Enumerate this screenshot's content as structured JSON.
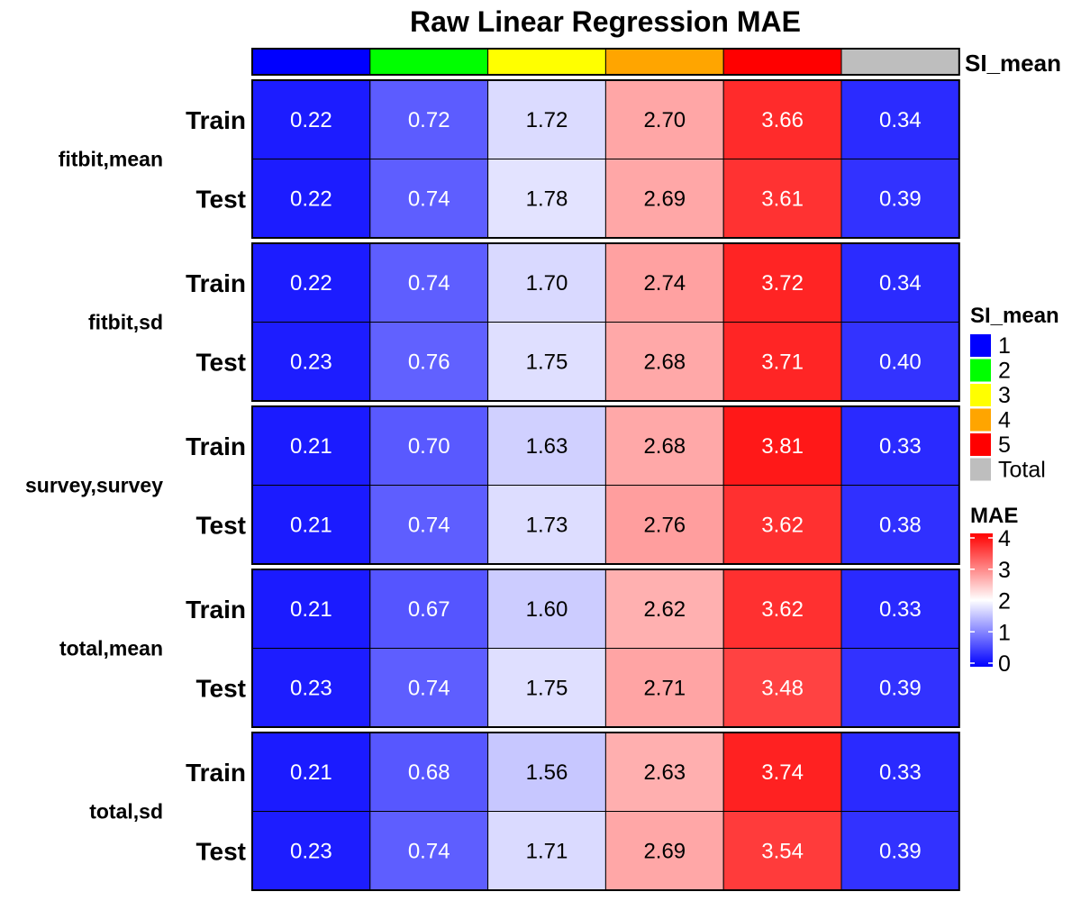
{
  "chart_data": {
    "type": "heatmap",
    "title": "Raw Linear Regression MAE",
    "annotation": {
      "name": "SI_mean",
      "columns": [
        "1",
        "2",
        "3",
        "4",
        "5",
        "Total"
      ],
      "colors": [
        "#0000ff",
        "#00ff00",
        "#ffff00",
        "#ffa500",
        "#ff0000",
        "#bebebe"
      ]
    },
    "groups": [
      {
        "label": "fitbit,mean",
        "rows": [
          {
            "label": "Train",
            "values": [
              0.22,
              0.72,
              1.72,
              2.7,
              3.66,
              0.34
            ]
          },
          {
            "label": "Test",
            "values": [
              0.22,
              0.74,
              1.78,
              2.69,
              3.61,
              0.39
            ]
          }
        ]
      },
      {
        "label": "fitbit,sd",
        "rows": [
          {
            "label": "Train",
            "values": [
              0.22,
              0.74,
              1.7,
              2.74,
              3.72,
              0.34
            ]
          },
          {
            "label": "Test",
            "values": [
              0.23,
              0.76,
              1.75,
              2.68,
              3.71,
              0.4
            ]
          }
        ]
      },
      {
        "label": "survey,survey",
        "rows": [
          {
            "label": "Train",
            "values": [
              0.21,
              0.7,
              1.63,
              2.68,
              3.81,
              0.33
            ]
          },
          {
            "label": "Test",
            "values": [
              0.21,
              0.74,
              1.73,
              2.76,
              3.62,
              0.38
            ]
          }
        ]
      },
      {
        "label": "total,mean",
        "rows": [
          {
            "label": "Train",
            "values": [
              0.21,
              0.67,
              1.6,
              2.62,
              3.62,
              0.33
            ]
          },
          {
            "label": "Test",
            "values": [
              0.23,
              0.74,
              1.75,
              2.71,
              3.48,
              0.39
            ]
          }
        ]
      },
      {
        "label": "total,sd",
        "rows": [
          {
            "label": "Train",
            "values": [
              0.21,
              0.68,
              1.56,
              2.63,
              3.74,
              0.33
            ]
          },
          {
            "label": "Test",
            "values": [
              0.23,
              0.74,
              1.71,
              2.69,
              3.54,
              0.39
            ]
          }
        ]
      }
    ],
    "value_format_decimals": 2,
    "color_scale": {
      "name": "MAE",
      "stops": [
        {
          "value": 0,
          "color": "#0000ff"
        },
        {
          "value": 2,
          "color": "#ffffff"
        },
        {
          "value": 4,
          "color": "#ff0000"
        }
      ],
      "ticks": [
        "0",
        "1",
        "2",
        "3",
        "4"
      ],
      "range": [
        0,
        4
      ]
    },
    "legend_placement": "right",
    "grid": false
  }
}
